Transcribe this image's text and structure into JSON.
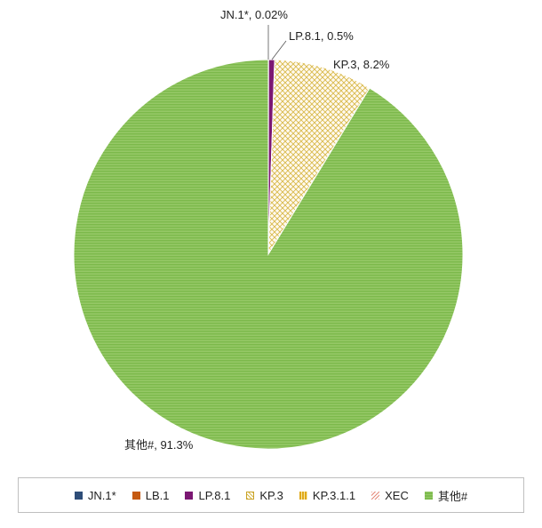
{
  "chart_data": {
    "type": "pie",
    "title": "",
    "slices": [
      {
        "name": "JN.1*",
        "value": 0.02,
        "label": "JN.1*, 0.02%",
        "color": "#2e4d78",
        "show_label": true
      },
      {
        "name": "LB.1",
        "value": 0,
        "label": "",
        "color": "#c55a11",
        "show_label": false
      },
      {
        "name": "LP.8.1",
        "value": 0.5,
        "label": "LP.8.1, 0.5%",
        "color": "#7b1773",
        "show_label": true
      },
      {
        "name": "KP.3",
        "value": 8.2,
        "label": "KP.3, 8.2%",
        "color": "#d8b94a",
        "show_label": true
      },
      {
        "name": "KP.3.1.1",
        "value": 0,
        "label": "",
        "color": "#e0a91a",
        "show_label": false
      },
      {
        "name": "XEC",
        "value": 0,
        "label": "",
        "color": "#e58a7a",
        "show_label": false
      },
      {
        "name": "其他#",
        "value": 91.3,
        "label": "其他#, 91.3%",
        "color": "#86c15a",
        "show_label": true
      }
    ],
    "legend_position": "bottom"
  },
  "legend": {
    "items": [
      {
        "label": "JN.1*",
        "swatch": "solid",
        "color": "#2e4d78"
      },
      {
        "label": "LB.1",
        "swatch": "solid",
        "color": "#c55a11"
      },
      {
        "label": "LP.8.1",
        "swatch": "solid",
        "color": "#7b1773"
      },
      {
        "label": "KP.3",
        "swatch": "kp3"
      },
      {
        "label": "KP.3.1.1",
        "swatch": "kp311"
      },
      {
        "label": "XEC",
        "swatch": "xec"
      },
      {
        "label": "其他#",
        "swatch": "other"
      }
    ]
  }
}
